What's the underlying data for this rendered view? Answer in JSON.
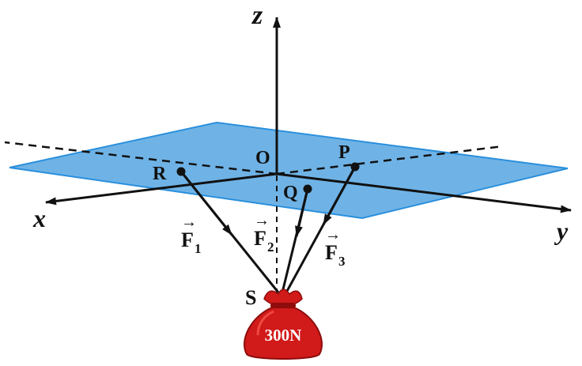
{
  "axes": {
    "x": "x",
    "y": "y",
    "z": "z"
  },
  "points": {
    "origin": "O",
    "P": "P",
    "Q": "Q",
    "R": "R",
    "S": "S"
  },
  "forces": [
    {
      "symbol": "F",
      "subscript": "1"
    },
    {
      "symbol": "F",
      "subscript": "2"
    },
    {
      "symbol": "F",
      "subscript": "3"
    }
  ],
  "vector_arrow": "→",
  "load": {
    "label": "300N"
  },
  "colors": {
    "plane_fill": "#6fb3e6",
    "plane_stroke": "#2a8fdc",
    "bag": "#d11a1a",
    "bag_dark": "#8e0c0c",
    "line": "#111111"
  }
}
